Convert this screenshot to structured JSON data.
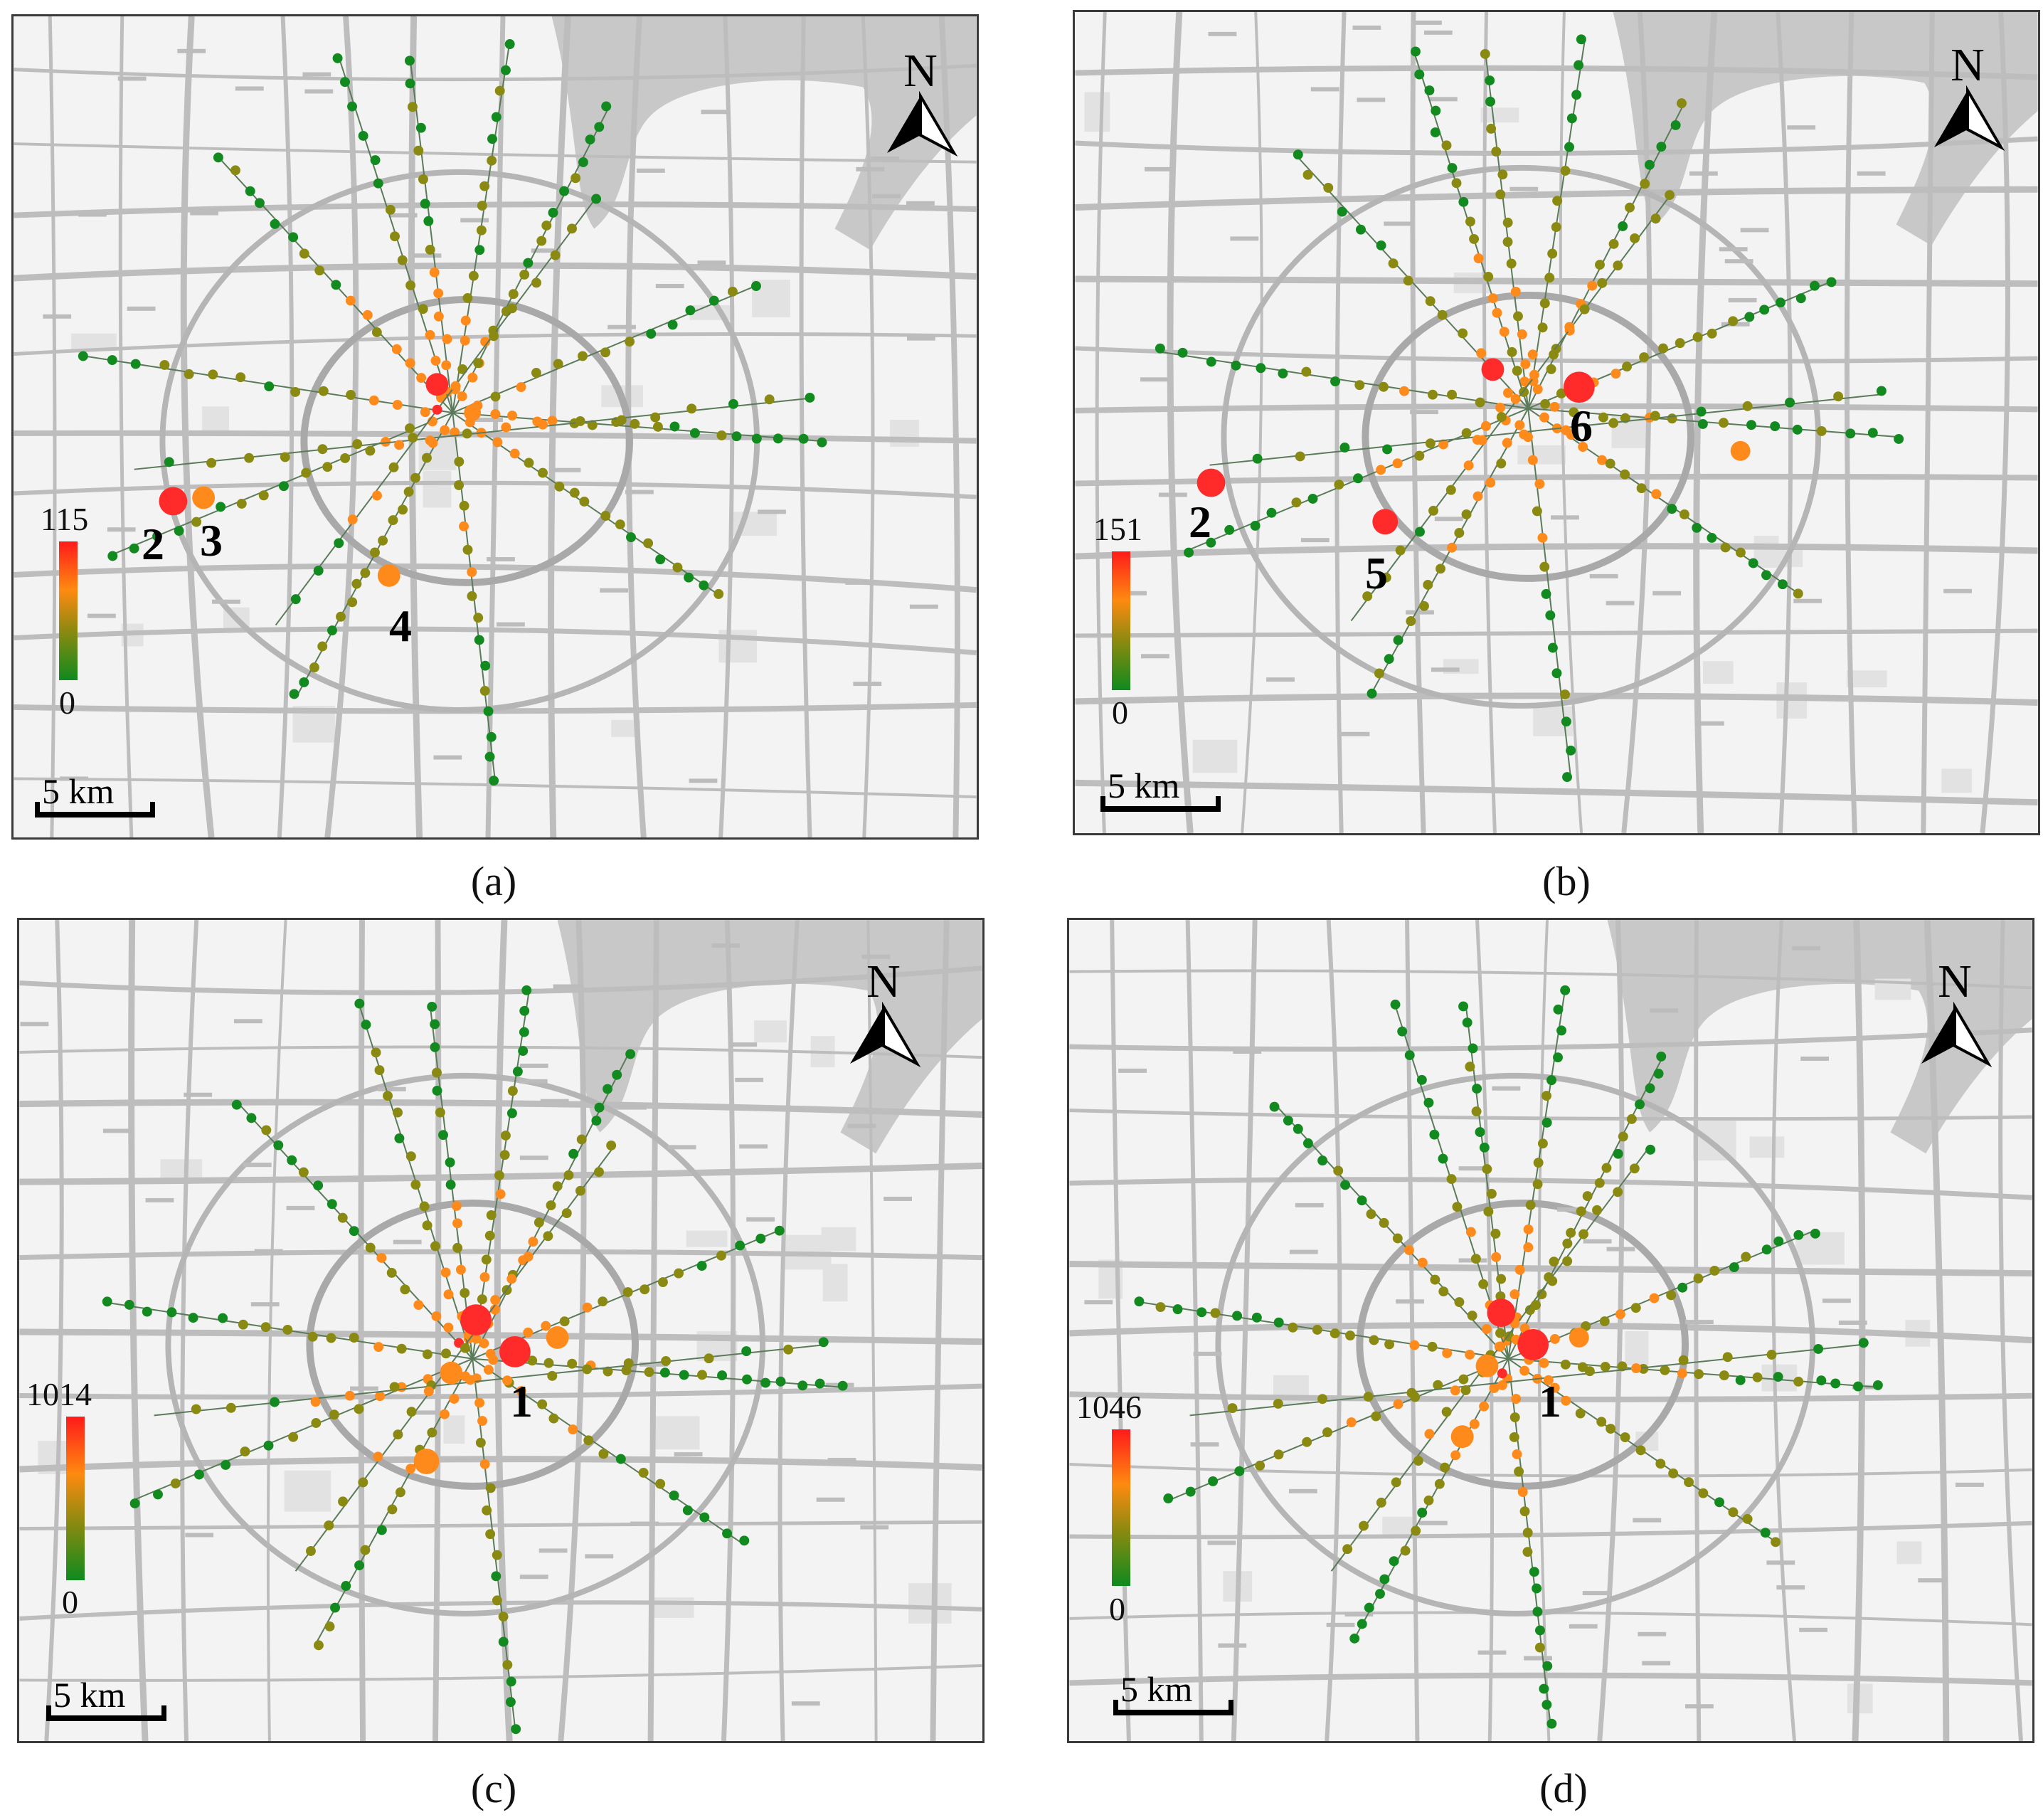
{
  "panels": [
    {
      "id": "a",
      "caption": "(a)",
      "north_label": "N",
      "scale_label": "5 km",
      "legend": {
        "max": "115",
        "min": "0"
      },
      "hotspots": [
        {
          "label": "2"
        },
        {
          "label": "3"
        },
        {
          "label": "4"
        }
      ]
    },
    {
      "id": "b",
      "caption": "(b)",
      "north_label": "N",
      "scale_label": "5 km",
      "legend": {
        "max": "151",
        "min": "0"
      },
      "hotspots": [
        {
          "label": "2"
        },
        {
          "label": "5"
        },
        {
          "label": "6"
        }
      ]
    },
    {
      "id": "c",
      "caption": "(c)",
      "north_label": "N",
      "scale_label": "5 km",
      "legend": {
        "max": "1014",
        "min": "0"
      },
      "hotspots": [
        {
          "label": "1"
        }
      ]
    },
    {
      "id": "d",
      "caption": "(d)",
      "north_label": "N",
      "scale_label": "5 km",
      "legend": {
        "max": "1046",
        "min": "0"
      },
      "hotspots": [
        {
          "label": "1"
        }
      ]
    }
  ],
  "colors": {
    "low": "#128a1f",
    "mid": "#8a8a12",
    "high_orange": "#ff8a1c",
    "peak_red": "#ff2a2a",
    "river": "#c8c8c8",
    "road": "#bdbdbd",
    "background": "#f3f3f3"
  }
}
